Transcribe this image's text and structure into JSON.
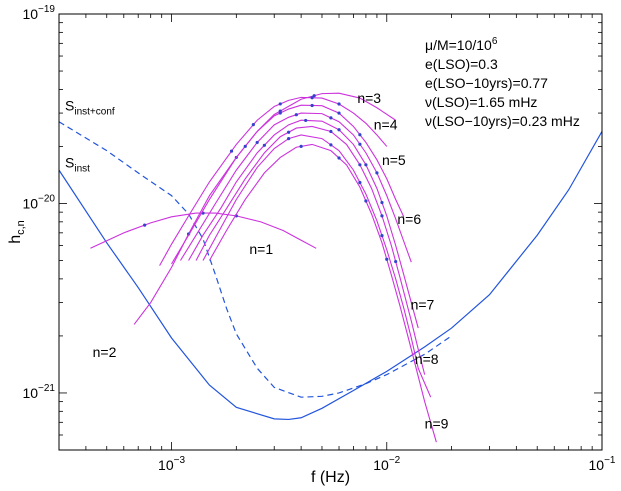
{
  "chart_data": {
    "type": "line",
    "title": "",
    "xlabel": "f (Hz)",
    "ylabel": "h",
    "ylabel_sub": "c,n",
    "xscale": "log",
    "yscale": "log",
    "xlim": [
      0.0003,
      0.1
    ],
    "ylim": [
      5e-22,
      1e-19
    ],
    "grid": false,
    "x_ticks": [
      {
        "value": 0.001,
        "base": "10",
        "exp": "−3"
      },
      {
        "value": 0.01,
        "base": "10",
        "exp": "−2"
      },
      {
        "value": 0.1,
        "base": "10",
        "exp": "−1"
      }
    ],
    "y_ticks": [
      {
        "value": 1e-21,
        "base": "10",
        "exp": "−21"
      },
      {
        "value": 1e-20,
        "base": "10",
        "exp": "−20"
      },
      {
        "value": 1e-19,
        "base": "10",
        "exp": "−19"
      }
    ],
    "annotation_lines": [
      {
        "pre": "μ/M=10/10",
        "sup": "6"
      },
      {
        "pre": "e(LSO)=0.3",
        "sup": ""
      },
      {
        "pre": "e(LSO−10yrs)=0.77",
        "sup": ""
      },
      {
        "pre": "ν(LSO)=1.65 mHz",
        "sup": ""
      },
      {
        "pre": "ν(LSO−10yrs)=0.23 mHz",
        "sup": ""
      }
    ],
    "noise_curves": [
      {
        "name": "S_inst",
        "label_main": "S",
        "label_sub": "inst",
        "color": "#2255dd",
        "dashed": false,
        "label_at": {
          "x": 0.00032,
          "y": 1.55e-20
        },
        "x": [
          0.0003,
          0.0005,
          0.0007,
          0.001,
          0.0015,
          0.002,
          0.003,
          0.0035,
          0.004,
          0.005,
          0.007,
          0.01,
          0.015,
          0.02,
          0.03,
          0.05,
          0.07,
          0.1
        ],
        "y": [
          1.5e-20,
          6.2e-21,
          3.6e-21,
          1.95e-21,
          1.1e-21,
          8.4e-22,
          7.3e-22,
          7.25e-22,
          7.4e-22,
          8.3e-22,
          1.03e-21,
          1.3e-21,
          1.75e-21,
          2.2e-21,
          3.3e-21,
          6.8e-21,
          1.18e-20,
          2.4e-20
        ]
      },
      {
        "name": "S_inst+conf",
        "label_main": "S",
        "label_sub": "inst+conf",
        "color": "#2255dd",
        "dashed": true,
        "label_at": {
          "x": 0.00032,
          "y": 3.1e-20
        },
        "x": [
          0.0003,
          0.0005,
          0.0007,
          0.001,
          0.0012,
          0.0014,
          0.0016,
          0.0018,
          0.002,
          0.0025,
          0.003,
          0.004,
          0.005,
          0.006,
          0.008,
          0.01,
          0.015,
          0.02
        ],
        "y": [
          2.7e-20,
          1.9e-20,
          1.45e-20,
          1.1e-20,
          8.8e-21,
          6.5e-21,
          4.2e-21,
          2.8e-21,
          2.05e-21,
          1.35e-21,
          1.07e-21,
          9.5e-22,
          9.6e-22,
          1e-21,
          1.12e-21,
          1.25e-21,
          1.6e-21,
          2e-21
        ]
      }
    ],
    "series": [
      {
        "name": "n=1",
        "label": "n=1",
        "label_at": {
          "x": 0.0023,
          "y": 5.4e-21
        },
        "x": [
          0.00042,
          0.0006,
          0.0008,
          0.001,
          0.0013,
          0.0016,
          0.002,
          0.0026,
          0.0033,
          0.004,
          0.0047
        ],
        "y": [
          5.8e-21,
          7e-21,
          7.9e-21,
          8.5e-21,
          8.9e-21,
          8.9e-21,
          8.6e-21,
          8e-21,
          7.2e-21,
          6.4e-21,
          5.8e-21
        ],
        "dots_x": [
          0.00075,
          0.0014,
          0.002
        ]
      },
      {
        "name": "n=2",
        "label": "n=2",
        "label_at": {
          "x": 0.00043,
          "y": 1.55e-21
        },
        "x": [
          0.00067,
          0.0008,
          0.001,
          0.0012,
          0.0015,
          0.002,
          0.0025,
          0.003,
          0.004,
          0.005,
          0.006,
          0.0075,
          0.009,
          0.011
        ],
        "y": [
          2.3e-21,
          3e-21,
          4.6e-21,
          6.9e-21,
          1.1e-20,
          1.75e-20,
          2.4e-20,
          2.95e-20,
          3.55e-20,
          3.8e-20,
          3.82e-20,
          3.6e-20,
          3.2e-20,
          2.75e-20
        ],
        "dots_x": [
          0.0012,
          0.002,
          0.0032,
          0.0046
        ]
      },
      {
        "name": "n=3",
        "label": "n=3",
        "label_at": {
          "x": 0.0073,
          "y": 3.4e-20
        },
        "x": [
          0.00088,
          0.001,
          0.0012,
          0.0015,
          0.002,
          0.0025,
          0.003,
          0.0035,
          0.004,
          0.005,
          0.006,
          0.007,
          0.008,
          0.009,
          0.01
        ],
        "y": [
          4.7e-21,
          6.1e-21,
          8.6e-21,
          1.3e-20,
          2.05e-20,
          2.75e-20,
          3.25e-20,
          3.5e-20,
          3.63e-20,
          3.6e-20,
          3.35e-20,
          3e-20,
          2.65e-20,
          2.3e-20,
          2e-20
        ],
        "dots_x": [
          0.0019,
          0.0024,
          0.0032,
          0.0045,
          0.006
        ]
      },
      {
        "name": "n=4",
        "label": "n=4",
        "label_at": {
          "x": 0.0087,
          "y": 2.45e-20
        },
        "x": [
          0.001,
          0.0012,
          0.0015,
          0.002,
          0.0025,
          0.003,
          0.0035,
          0.004,
          0.005,
          0.006,
          0.007,
          0.008,
          0.009,
          0.01,
          0.011,
          0.012
        ],
        "y": [
          4.8e-21,
          6.8e-21,
          1.05e-20,
          1.75e-20,
          2.4e-20,
          2.9e-20,
          3.15e-20,
          3.3e-20,
          3.28e-20,
          3e-20,
          2.55e-20,
          2.1e-20,
          1.7e-20,
          1.35e-20,
          1.05e-20,
          8.5e-21
        ],
        "dots_x": [
          0.0022,
          0.0032,
          0.0045,
          0.006,
          0.0075
        ]
      },
      {
        "name": "n=5",
        "label": "n=5",
        "label_at": {
          "x": 0.0095,
          "y": 1.6e-20
        },
        "x": [
          0.0011,
          0.0013,
          0.0016,
          0.002,
          0.0025,
          0.003,
          0.0035,
          0.004,
          0.005,
          0.006,
          0.007,
          0.008,
          0.009,
          0.01,
          0.011,
          0.012,
          0.013
        ],
        "y": [
          5e-21,
          6.8e-21,
          1e-20,
          1.5e-20,
          2.1e-20,
          2.6e-20,
          2.85e-20,
          3e-20,
          2.98e-20,
          2.7e-20,
          2.3e-20,
          1.85e-20,
          1.45e-20,
          1.1e-20,
          8.3e-21,
          6.3e-21,
          4.9e-21
        ],
        "dots_x": [
          0.0025,
          0.0038,
          0.0055,
          0.0075,
          0.009
        ]
      },
      {
        "name": "n=6",
        "label": "n=6",
        "label_at": {
          "x": 0.0112,
          "y": 7.8e-21
        },
        "x": [
          0.0012,
          0.0014,
          0.0017,
          0.002,
          0.0025,
          0.003,
          0.0035,
          0.004,
          0.005,
          0.006,
          0.007,
          0.008,
          0.009,
          0.01,
          0.011,
          0.012,
          0.013,
          0.014
        ],
        "y": [
          5e-21,
          6.8e-21,
          9.5e-21,
          1.3e-20,
          1.85e-20,
          2.3e-20,
          2.6e-20,
          2.75e-20,
          2.72e-20,
          2.45e-20,
          2.05e-20,
          1.6e-20,
          1.2e-20,
          8.6e-21,
          6e-21,
          4.2e-21,
          3e-21,
          2.2e-21
        ],
        "dots_x": [
          0.0027,
          0.0042,
          0.006,
          0.008,
          0.0095
        ]
      },
      {
        "name": "n=7",
        "label": "n=7",
        "label_at": {
          "x": 0.0129,
          "y": 2.75e-21
        },
        "x": [
          0.0013,
          0.0015,
          0.0018,
          0.0022,
          0.0027,
          0.0032,
          0.0038,
          0.0045,
          0.0055,
          0.0065,
          0.0075,
          0.0085,
          0.0095,
          0.0105,
          0.0115,
          0.013,
          0.014,
          0.015
        ],
        "y": [
          5e-21,
          6.8e-21,
          9.4e-21,
          1.35e-20,
          1.85e-20,
          2.25e-20,
          2.5e-20,
          2.55e-20,
          2.4e-20,
          2.05e-20,
          1.6e-20,
          1.2e-20,
          8.6e-21,
          6e-21,
          4.1e-21,
          2.4e-21,
          1.7e-21,
          1.25e-21
        ],
        "dots_x": [
          0.0035,
          0.0055,
          0.0075,
          0.0095,
          0.011
        ]
      },
      {
        "name": "n=8",
        "label": "n=8",
        "label_at": {
          "x": 0.0135,
          "y": 1.42e-21
        },
        "x": [
          0.0014,
          0.0016,
          0.002,
          0.0025,
          0.003,
          0.0035,
          0.004,
          0.005,
          0.006,
          0.007,
          0.008,
          0.009,
          0.01,
          0.011,
          0.012,
          0.013,
          0.014,
          0.016
        ],
        "y": [
          5e-21,
          6.6e-21,
          1.05e-20,
          1.55e-20,
          1.95e-20,
          2.2e-20,
          2.3e-20,
          2.2e-20,
          1.9e-20,
          1.5e-20,
          1.12e-20,
          8.1e-21,
          5.7e-21,
          4e-21,
          2.8e-21,
          1.95e-21,
          1.35e-21,
          9.5e-22
        ],
        "dots_x": [
          0.0035,
          0.0055,
          0.0075,
          0.0095
        ]
      },
      {
        "name": "n=9",
        "label": "n=9",
        "label_at": {
          "x": 0.015,
          "y": 6.5e-22
        },
        "x": [
          0.0015,
          0.0018,
          0.0022,
          0.0027,
          0.0032,
          0.0038,
          0.0045,
          0.0055,
          0.0065,
          0.0075,
          0.0085,
          0.0095,
          0.0105,
          0.0115,
          0.013,
          0.015,
          0.017
        ],
        "y": [
          5e-21,
          7.2e-21,
          1.05e-20,
          1.45e-20,
          1.75e-20,
          1.98e-20,
          2.05e-20,
          1.9e-20,
          1.6e-20,
          1.22e-20,
          8.8e-21,
          6.2e-21,
          4.2e-21,
          2.9e-21,
          1.7e-21,
          9e-22,
          5.5e-22
        ],
        "dots_x": [
          0.004,
          0.006,
          0.008,
          0.01
        ]
      }
    ],
    "harmonic_color": "#cc33dd",
    "axis_color": "#000000"
  }
}
